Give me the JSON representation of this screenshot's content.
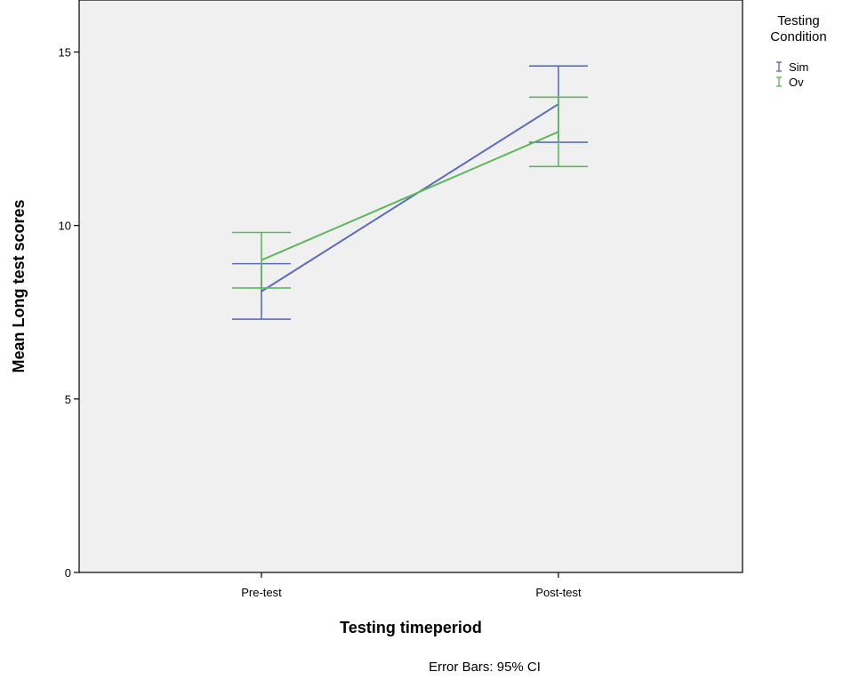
{
  "chart_data": {
    "type": "line",
    "xlabel": "Testing timeperiod",
    "ylabel": "Mean Long test scores",
    "categories": [
      "Pre-test",
      "Post-test"
    ],
    "ylim": [
      0,
      16.5
    ],
    "yticks": [
      "0",
      "5",
      "10",
      "15"
    ],
    "grid": false,
    "legend": {
      "title_line1": "Testing",
      "title_line2": "Condition",
      "placement": "top-right outside"
    },
    "series": [
      {
        "name": "Sim",
        "color": "#5b6eb5",
        "values": [
          8.1,
          13.5
        ],
        "ci_low": [
          7.3,
          12.4
        ],
        "ci_high": [
          8.9,
          14.6
        ]
      },
      {
        "name": "Ov",
        "color": "#5cb85c",
        "values": [
          9.0,
          12.7
        ],
        "ci_low": [
          8.2,
          11.7
        ],
        "ci_high": [
          9.8,
          13.7
        ]
      }
    ],
    "note": "Error Bars: 95% CI"
  }
}
